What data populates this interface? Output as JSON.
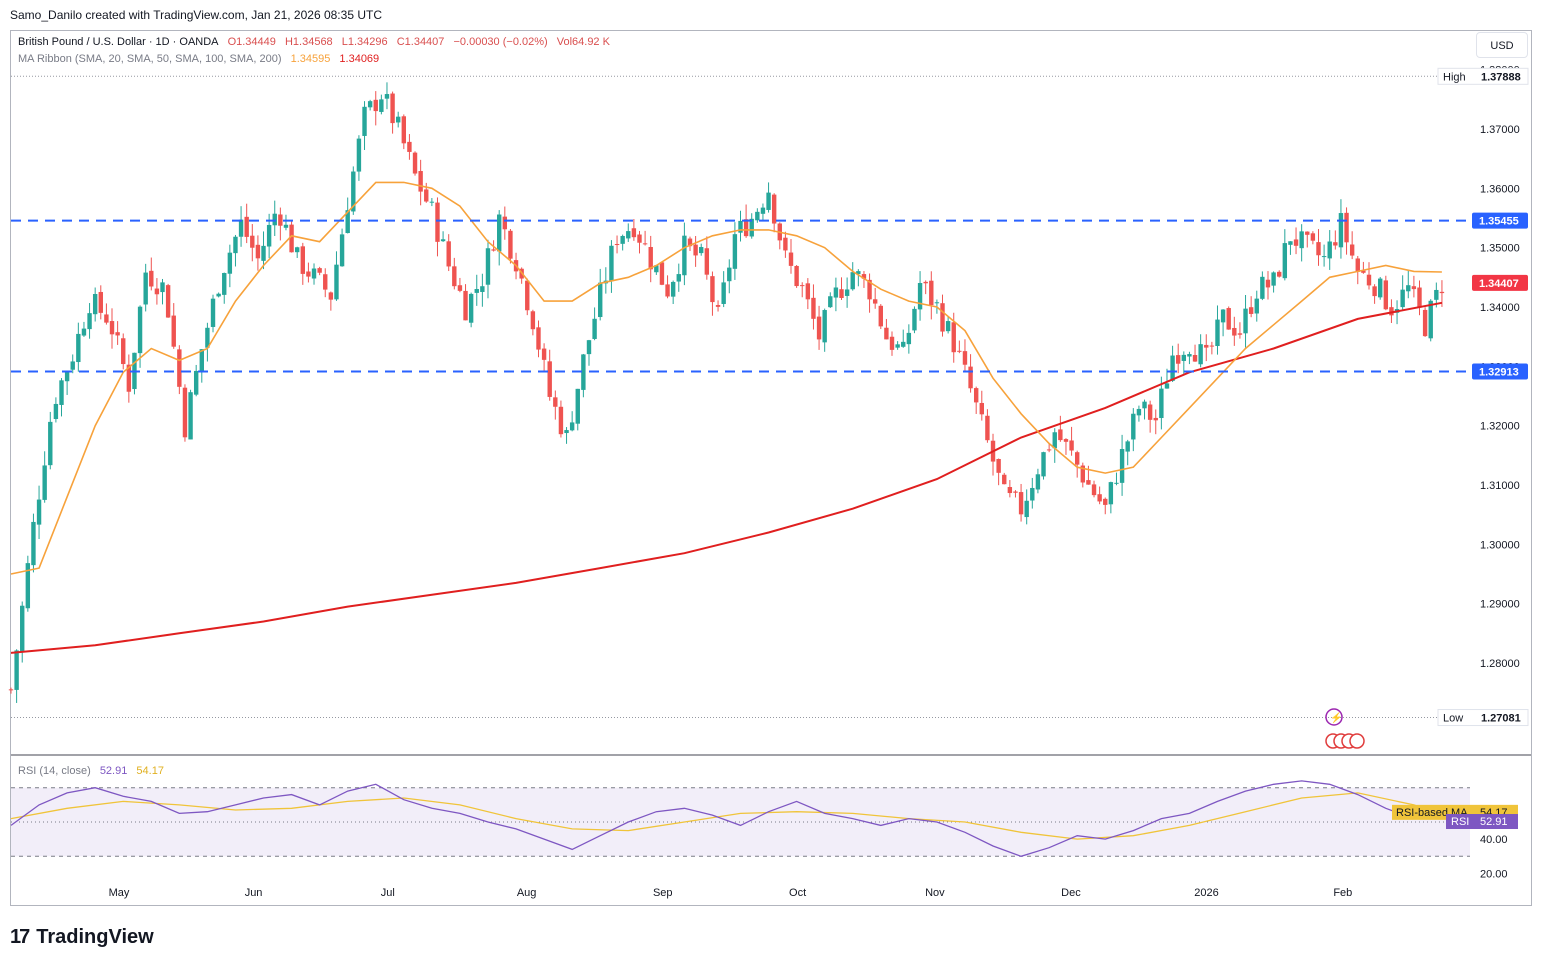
{
  "header": {
    "credit": "Samo_Danilo created with TradingView.com, Jan 21, 2026 08:35 UTC"
  },
  "legend": {
    "symbol": "British Pound / U.S. Dollar · 1D · OANDA",
    "open": "O1.34449",
    "high": "H1.34568",
    "low": "L1.34296",
    "close": "C1.34407",
    "change": "−0.00030 (−0.02%)",
    "volume": "Vol64.92 K",
    "ma_label": "MA Ribbon (SMA, 20, SMA, 50, SMA, 100, SMA, 200)",
    "ma_value_1": "1.34595",
    "ma_value_2": "1.34069",
    "rsi_label": "RSI (14, close)",
    "rsi_value": "52.91",
    "rsi_ma_value": "54.17"
  },
  "currency_button": "USD",
  "price_axis": {
    "high_label": "High",
    "high_value": "1.37888",
    "low_label": "Low",
    "low_value": "1.27081",
    "resistance": "1.35455",
    "support": "1.32913",
    "last_price": "1.34407"
  },
  "rsi_axis": {
    "ma_tag": "RSI-based MA",
    "ma_value": "54.17",
    "rsi_tag": "RSI",
    "rsi_value": "52.91"
  },
  "footer": {
    "logo_mark": "17",
    "logo_text": "TradingView"
  },
  "colors": {
    "up": "#26a69a",
    "down": "#ef5350",
    "ma20": "#f7a23b",
    "ma200": "#e01f1f",
    "level": "#2962ff",
    "rsi": "#7e57c2",
    "rsi_ma": "#f0c43a",
    "rsi_band": "#ede7f6"
  },
  "chart_data": [
    {
      "type": "candlestick",
      "title": "British Pound / U.S. Dollar · 1D · OANDA",
      "x_labels": [
        "May",
        "Jun",
        "Jul",
        "Aug",
        "Sep",
        "Oct",
        "Nov",
        "Dec",
        "2026",
        "Feb"
      ],
      "y_ticks": [
        1.28,
        1.29,
        1.3,
        1.31,
        1.32,
        1.33,
        1.34,
        1.35,
        1.36,
        1.37,
        1.38
      ],
      "ylim": [
        1.265,
        1.385
      ],
      "horizontal_levels": [
        1.35455,
        1.32913
      ],
      "range_high": 1.37888,
      "range_low": 1.27081,
      "last_close": 1.34407,
      "close_path": [
        [
          0,
          1.2755
        ],
        [
          8,
          1.303
        ],
        [
          15,
          1.324
        ],
        [
          22,
          1.332
        ],
        [
          28,
          1.341
        ],
        [
          35,
          1.338
        ],
        [
          42,
          1.327
        ],
        [
          48,
          1.346
        ],
        [
          55,
          1.343
        ],
        [
          62,
          1.32
        ],
        [
          68,
          1.333
        ],
        [
          75,
          1.346
        ],
        [
          82,
          1.354
        ],
        [
          88,
          1.348
        ],
        [
          95,
          1.357
        ],
        [
          102,
          1.348
        ],
        [
          108,
          1.345
        ],
        [
          114,
          1.342
        ],
        [
          120,
          1.358
        ],
        [
          126,
          1.372
        ],
        [
          132,
          1.376
        ],
        [
          138,
          1.37
        ],
        [
          144,
          1.362
        ],
        [
          150,
          1.356
        ],
        [
          156,
          1.347
        ],
        [
          162,
          1.34
        ],
        [
          168,
          1.345
        ],
        [
          174,
          1.355
        ],
        [
          180,
          1.348
        ],
        [
          186,
          1.338
        ],
        [
          192,
          1.325
        ],
        [
          198,
          1.318
        ],
        [
          204,
          1.331
        ],
        [
          210,
          1.342
        ],
        [
          216,
          1.352
        ],
        [
          222,
          1.354
        ],
        [
          228,
          1.348
        ],
        [
          234,
          1.343
        ],
        [
          240,
          1.35
        ],
        [
          246,
          1.348
        ],
        [
          252,
          1.338
        ],
        [
          258,
          1.352
        ],
        [
          264,
          1.355
        ],
        [
          270,
          1.36
        ],
        [
          276,
          1.348
        ],
        [
          282,
          1.343
        ],
        [
          288,
          1.335
        ],
        [
          294,
          1.342
        ],
        [
          300,
          1.346
        ],
        [
          306,
          1.343
        ],
        [
          312,
          1.335
        ],
        [
          318,
          1.332
        ],
        [
          324,
          1.344
        ],
        [
          330,
          1.34
        ],
        [
          336,
          1.334
        ],
        [
          342,
          1.326
        ],
        [
          348,
          1.317
        ],
        [
          354,
          1.308
        ],
        [
          360,
          1.306
        ],
        [
          366,
          1.313
        ],
        [
          372,
          1.319
        ],
        [
          378,
          1.315
        ],
        [
          384,
          1.31
        ],
        [
          390,
          1.306
        ],
        [
          396,
          1.315
        ],
        [
          402,
          1.323
        ],
        [
          408,
          1.321
        ],
        [
          414,
          1.332
        ],
        [
          420,
          1.334
        ],
        [
          426,
          1.331
        ],
        [
          432,
          1.338
        ],
        [
          438,
          1.336
        ],
        [
          444,
          1.343
        ],
        [
          450,
          1.344
        ],
        [
          456,
          1.352
        ],
        [
          462,
          1.35
        ],
        [
          468,
          1.348
        ],
        [
          474,
          1.354
        ],
        [
          480,
          1.346
        ],
        [
          486,
          1.344
        ],
        [
          492,
          1.34
        ],
        [
          498,
          1.343
        ],
        [
          504,
          1.337
        ],
        [
          510,
          1.344
        ]
      ],
      "sma20": [
        [
          0,
          1.295
        ],
        [
          10,
          1.296
        ],
        [
          20,
          1.308
        ],
        [
          30,
          1.32
        ],
        [
          40,
          1.329
        ],
        [
          50,
          1.333
        ],
        [
          60,
          1.331
        ],
        [
          70,
          1.333
        ],
        [
          80,
          1.341
        ],
        [
          90,
          1.347
        ],
        [
          100,
          1.352
        ],
        [
          110,
          1.351
        ],
        [
          120,
          1.356
        ],
        [
          130,
          1.361
        ],
        [
          140,
          1.361
        ],
        [
          150,
          1.36
        ],
        [
          160,
          1.357
        ],
        [
          170,
          1.351
        ],
        [
          180,
          1.347
        ],
        [
          190,
          1.341
        ],
        [
          200,
          1.341
        ],
        [
          210,
          1.344
        ],
        [
          220,
          1.345
        ],
        [
          230,
          1.347
        ],
        [
          240,
          1.35
        ],
        [
          250,
          1.352
        ],
        [
          260,
          1.353
        ],
        [
          270,
          1.353
        ],
        [
          280,
          1.352
        ],
        [
          290,
          1.35
        ],
        [
          300,
          1.346
        ],
        [
          310,
          1.343
        ],
        [
          320,
          1.341
        ],
        [
          330,
          1.34
        ],
        [
          340,
          1.336
        ],
        [
          350,
          1.328
        ],
        [
          360,
          1.322
        ],
        [
          370,
          1.317
        ],
        [
          380,
          1.313
        ],
        [
          390,
          1.312
        ],
        [
          400,
          1.313
        ],
        [
          410,
          1.318
        ],
        [
          420,
          1.323
        ],
        [
          430,
          1.328
        ],
        [
          440,
          1.333
        ],
        [
          450,
          1.337
        ],
        [
          460,
          1.341
        ],
        [
          470,
          1.345
        ],
        [
          480,
          1.346
        ],
        [
          490,
          1.347
        ],
        [
          500,
          1.346
        ],
        [
          510,
          1.3459
        ]
      ],
      "sma200": [
        [
          0,
          1.2817
        ],
        [
          30,
          1.283
        ],
        [
          60,
          1.285
        ],
        [
          90,
          1.287
        ],
        [
          120,
          1.2895
        ],
        [
          150,
          1.2915
        ],
        [
          180,
          1.2935
        ],
        [
          210,
          1.296
        ],
        [
          240,
          1.2985
        ],
        [
          270,
          1.302
        ],
        [
          300,
          1.306
        ],
        [
          330,
          1.311
        ],
        [
          360,
          1.318
        ],
        [
          390,
          1.323
        ],
        [
          420,
          1.329
        ],
        [
          450,
          1.333
        ],
        [
          480,
          1.338
        ],
        [
          510,
          1.3407
        ]
      ]
    },
    {
      "type": "line",
      "title": "RSI (14, close)",
      "ylim": [
        15,
        85
      ],
      "y_ticks": [
        20,
        40
      ],
      "band": [
        30,
        70
      ],
      "series": [
        {
          "name": "RSI",
          "values": [
            [
              0,
              48
            ],
            [
              10,
              60
            ],
            [
              20,
              67
            ],
            [
              30,
              70
            ],
            [
              40,
              65
            ],
            [
              50,
              62
            ],
            [
              60,
              55
            ],
            [
              70,
              56
            ],
            [
              80,
              60
            ],
            [
              90,
              64
            ],
            [
              100,
              66
            ],
            [
              110,
              60
            ],
            [
              120,
              68
            ],
            [
              130,
              72
            ],
            [
              140,
              63
            ],
            [
              150,
              58
            ],
            [
              160,
              55
            ],
            [
              170,
              50
            ],
            [
              180,
              46
            ],
            [
              190,
              40
            ],
            [
              200,
              34
            ],
            [
              210,
              42
            ],
            [
              220,
              50
            ],
            [
              230,
              56
            ],
            [
              240,
              58
            ],
            [
              250,
              54
            ],
            [
              260,
              48
            ],
            [
              270,
              56
            ],
            [
              280,
              62
            ],
            [
              290,
              55
            ],
            [
              300,
              52
            ],
            [
              310,
              48
            ],
            [
              320,
              52
            ],
            [
              330,
              50
            ],
            [
              340,
              44
            ],
            [
              350,
              36
            ],
            [
              360,
              30
            ],
            [
              370,
              35
            ],
            [
              380,
              42
            ],
            [
              390,
              40
            ],
            [
              400,
              45
            ],
            [
              410,
              52
            ],
            [
              420,
              55
            ],
            [
              430,
              62
            ],
            [
              440,
              68
            ],
            [
              450,
              72
            ],
            [
              460,
              74
            ],
            [
              470,
              72
            ],
            [
              480,
              66
            ],
            [
              490,
              58
            ],
            [
              500,
              52
            ],
            [
              510,
              52.91
            ]
          ]
        },
        {
          "name": "RSI-based MA",
          "values": [
            [
              0,
              52
            ],
            [
              20,
              58
            ],
            [
              40,
              62
            ],
            [
              60,
              60
            ],
            [
              80,
              57
            ],
            [
              100,
              58
            ],
            [
              120,
              62
            ],
            [
              140,
              64
            ],
            [
              160,
              60
            ],
            [
              180,
              52
            ],
            [
              200,
              46
            ],
            [
              220,
              45
            ],
            [
              240,
              50
            ],
            [
              260,
              55
            ],
            [
              280,
              56
            ],
            [
              300,
              55
            ],
            [
              320,
              52
            ],
            [
              340,
              50
            ],
            [
              360,
              44
            ],
            [
              380,
              40
            ],
            [
              400,
              42
            ],
            [
              420,
              48
            ],
            [
              440,
              56
            ],
            [
              460,
              64
            ],
            [
              480,
              67
            ],
            [
              500,
              60
            ],
            [
              510,
              54.17
            ]
          ]
        }
      ]
    }
  ]
}
